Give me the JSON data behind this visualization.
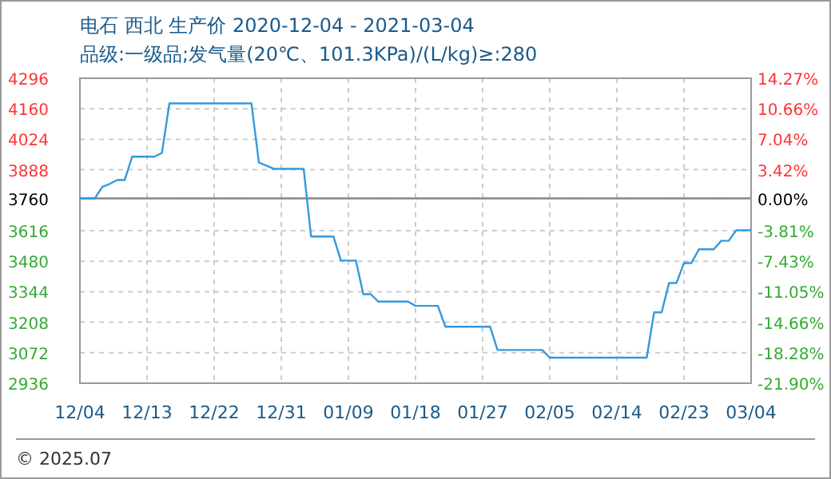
{
  "chart_data": {
    "type": "line",
    "title": "电石 西北 生产价 2020-12-04 - 2021-03-04",
    "subtitle": "品级:一级品;发气量(20℃、101.3KPa)/(L/kg)≥:280",
    "x": [
      "2020-12-04",
      "2020-12-06",
      "2020-12-07",
      "2020-12-08",
      "2020-12-09",
      "2020-12-10",
      "2020-12-11",
      "2020-12-14",
      "2020-12-15",
      "2020-12-16",
      "2020-12-27",
      "2020-12-28",
      "2020-12-30",
      "2021-01-03",
      "2021-01-04",
      "2021-01-07",
      "2021-01-08",
      "2021-01-10",
      "2021-01-11",
      "2021-01-12",
      "2021-01-13",
      "2021-01-17",
      "2021-01-18",
      "2021-01-21",
      "2021-01-22",
      "2021-01-28",
      "2021-01-29",
      "2021-02-04",
      "2021-02-05",
      "2021-02-18",
      "2021-02-19",
      "2021-02-20",
      "2021-02-21",
      "2021-02-22",
      "2021-02-23",
      "2021-02-24",
      "2021-02-25",
      "2021-02-27",
      "2021-02-28",
      "2021-03-01",
      "2021-03-02",
      "2021-03-04"
    ],
    "series": [
      {
        "color": "#3399dd",
        "values": [
          3760,
          3760,
          3811,
          3825,
          3842,
          3842,
          3946,
          3946,
          3963,
          4184,
          4184,
          3920,
          3892,
          3892,
          3590,
          3590,
          3483,
          3483,
          3333,
          3333,
          3300,
          3300,
          3281,
          3281,
          3188,
          3188,
          3084,
          3084,
          3050,
          3050,
          3252,
          3252,
          3383,
          3383,
          3472,
          3472,
          3533,
          3533,
          3571,
          3571,
          3618,
          3618
        ]
      }
    ],
    "xlim": [
      "2020-12-04",
      "2021-03-04"
    ],
    "xticks": [
      {
        "value": "2020-12-04",
        "label": "12/04"
      },
      {
        "value": "2020-12-13",
        "label": "12/13"
      },
      {
        "value": "2020-12-22",
        "label": "12/22"
      },
      {
        "value": "2020-12-31",
        "label": "12/31"
      },
      {
        "value": "2021-01-09",
        "label": "01/09"
      },
      {
        "value": "2021-01-18",
        "label": "01/18"
      },
      {
        "value": "2021-01-27",
        "label": "01/27"
      },
      {
        "value": "2021-02-05",
        "label": "02/05"
      },
      {
        "value": "2021-02-14",
        "label": "02/14"
      },
      {
        "value": "2021-02-23",
        "label": "02/23"
      },
      {
        "value": "2021-03-04",
        "label": "03/04"
      }
    ],
    "ylim": [
      2936,
      4296
    ],
    "yticks": [
      2936,
      3072,
      3208,
      3344,
      3480,
      3616,
      3760,
      3888,
      4024,
      4160,
      4296
    ],
    "y2lim": [
      -21.9,
      14.27
    ],
    "y2ticks": [
      {
        "value": -21.9,
        "label": "-21.90%"
      },
      {
        "value": -18.28,
        "label": "-18.28%"
      },
      {
        "value": -14.66,
        "label": "-14.66%"
      },
      {
        "value": -11.05,
        "label": "-11.05%"
      },
      {
        "value": -7.43,
        "label": "-7.43%"
      },
      {
        "value": -3.81,
        "label": "-3.81%"
      },
      {
        "value": 0,
        "label": "0.00%"
      },
      {
        "value": 3.42,
        "label": "3.42%"
      },
      {
        "value": 7.04,
        "label": "7.04%"
      },
      {
        "value": 10.66,
        "label": "10.66%"
      },
      {
        "value": 14.27,
        "label": "14.27%"
      }
    ],
    "ref_lines": [
      {
        "axis": "y",
        "value": 3760,
        "color": "#888888"
      }
    ],
    "grid": true,
    "annotations": [
      "© 2025.07"
    ]
  }
}
